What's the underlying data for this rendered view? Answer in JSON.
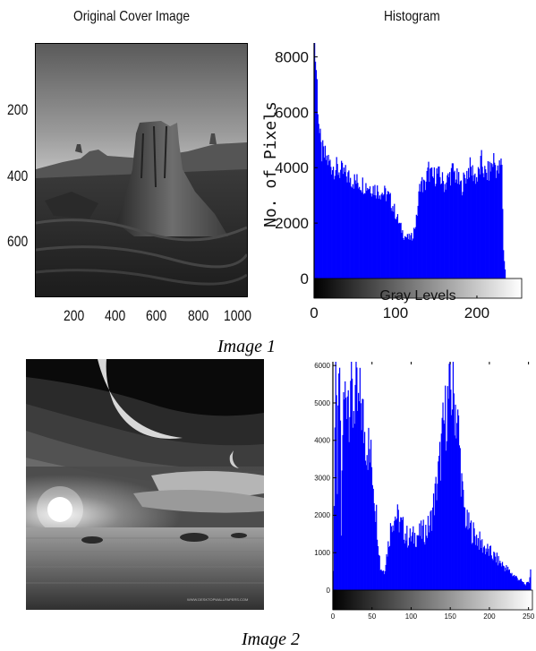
{
  "figure1": {
    "cover_title": "Original Cover Image",
    "cover_y_ticks": [
      "200",
      "400",
      "600"
    ],
    "cover_x_ticks": [
      "200",
      "400",
      "600",
      "800",
      "1000"
    ],
    "caption": "Image 1"
  },
  "figure2": {
    "watermark": "WWW.DESKTOPWALLPAPERS.COM",
    "caption": "Image 2"
  },
  "colors": {
    "bar": "#0000ff",
    "axis": "#000000"
  },
  "chart_data": [
    {
      "type": "area",
      "title": "Histogram",
      "xlabel": "Gray Levels",
      "ylabel": "No. of Pixels",
      "x_ticks": [
        "0",
        "100",
        "200"
      ],
      "y_ticks": [
        "0",
        "2000",
        "4000",
        "6000",
        "8000"
      ],
      "xlim": [
        0,
        255
      ],
      "ylim": [
        0,
        8500
      ],
      "grid": false,
      "x": [
        0,
        2,
        4,
        6,
        8,
        10,
        15,
        20,
        30,
        40,
        50,
        60,
        70,
        80,
        90,
        95,
        100,
        105,
        110,
        115,
        120,
        125,
        130,
        135,
        140,
        145,
        150,
        160,
        170,
        180,
        190,
        200,
        205,
        210,
        215,
        220,
        225,
        230,
        232,
        235
      ],
      "values": [
        8500,
        7600,
        6400,
        5200,
        4600,
        4500,
        4300,
        4100,
        3900,
        3700,
        3500,
        3400,
        3300,
        3150,
        3000,
        2700,
        2300,
        1900,
        1550,
        1450,
        1500,
        2100,
        3500,
        3300,
        3900,
        3600,
        3800,
        3400,
        3900,
        3300,
        4000,
        3600,
        4200,
        3700,
        3900,
        4300,
        3800,
        4200,
        1000,
        0
      ]
    },
    {
      "type": "area",
      "title": "",
      "xlabel": "",
      "ylabel": "",
      "x_ticks": [
        "0",
        "50",
        "100",
        "150",
        "200",
        "250"
      ],
      "y_ticks": [
        "0",
        "1000",
        "2000",
        "3000",
        "4000",
        "5000",
        "6000"
      ],
      "xlim": [
        0,
        255
      ],
      "ylim": [
        0,
        6100
      ],
      "grid": false,
      "x": [
        0,
        3,
        5,
        8,
        10,
        12,
        15,
        18,
        20,
        22,
        25,
        28,
        30,
        32,
        35,
        38,
        40,
        45,
        50,
        55,
        60,
        65,
        70,
        75,
        80,
        85,
        90,
        95,
        100,
        110,
        120,
        125,
        130,
        135,
        140,
        145,
        150,
        155,
        160,
        165,
        170,
        180,
        190,
        200,
        210,
        220,
        230,
        240,
        245,
        250,
        252
      ],
      "values": [
        600,
        6100,
        3000,
        6100,
        1500,
        4500,
        5200,
        5600,
        5100,
        5800,
        4800,
        5300,
        5000,
        4700,
        5100,
        4500,
        4200,
        3800,
        3200,
        2000,
        600,
        500,
        1200,
        1900,
        2000,
        1800,
        1600,
        1400,
        1400,
        1500,
        1600,
        1900,
        2500,
        3200,
        4200,
        4900,
        5300,
        5100,
        4200,
        2500,
        1800,
        1500,
        1200,
        1000,
        800,
        600,
        400,
        250,
        150,
        200,
        600
      ]
    }
  ]
}
